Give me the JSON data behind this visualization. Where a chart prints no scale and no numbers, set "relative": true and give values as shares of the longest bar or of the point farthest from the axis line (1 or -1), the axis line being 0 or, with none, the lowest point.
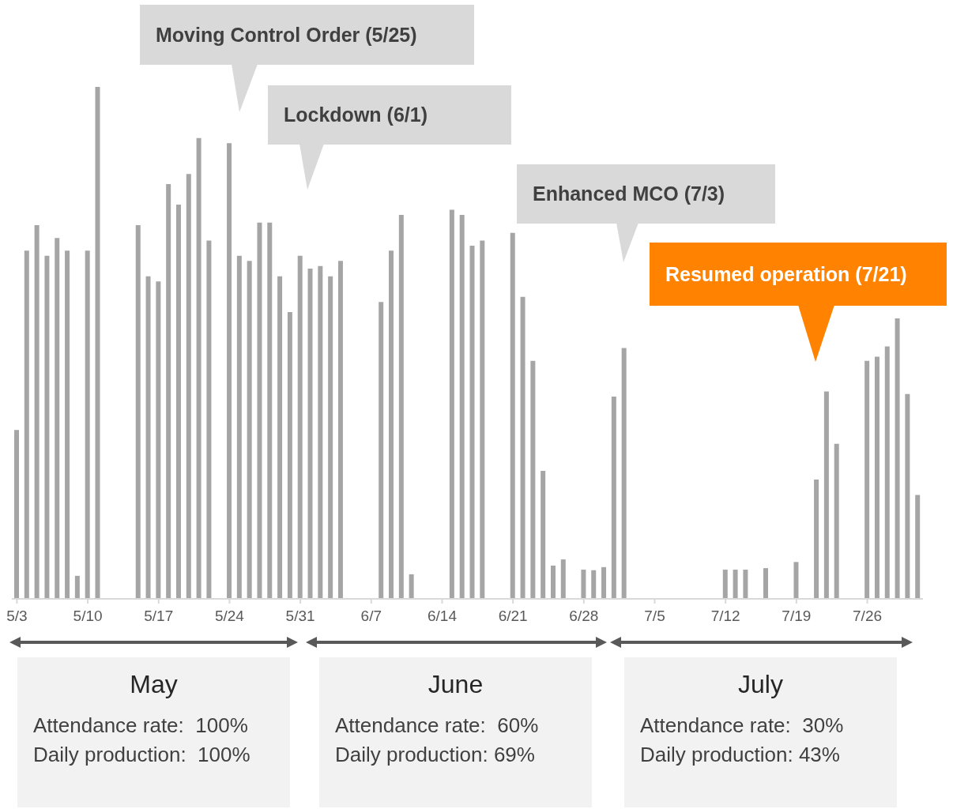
{
  "chart_data": {
    "type": "bar",
    "relative": true,
    "color": "#a5a5a5",
    "categories": [
      "5/3",
      null,
      null,
      null,
      null,
      null,
      null,
      "5/10",
      null,
      null,
      null,
      null,
      null,
      null,
      "5/17",
      null,
      null,
      null,
      null,
      null,
      null,
      "5/24",
      null,
      null,
      null,
      null,
      null,
      null,
      "5/31",
      null,
      null,
      null,
      null,
      null,
      null,
      "6/7",
      null,
      null,
      null,
      null,
      null,
      null,
      "6/14",
      null,
      null,
      null,
      null,
      null,
      null,
      "6/21",
      null,
      null,
      null,
      null,
      null,
      null,
      "6/28",
      null,
      null,
      null,
      null,
      null,
      null,
      "7/5",
      null,
      null,
      null,
      null,
      null,
      null,
      "7/12",
      null,
      null,
      null,
      null,
      null,
      null,
      "7/19",
      null,
      null,
      null,
      null,
      null,
      null,
      "7/26",
      null,
      null,
      null,
      null,
      null
    ],
    "values": [
      0.33,
      0.68,
      0.73,
      0.67,
      0.705,
      0.68,
      0.045,
      0.68,
      1.0,
      null,
      null,
      null,
      0.73,
      0.63,
      0.62,
      0.81,
      0.77,
      0.83,
      0.9,
      0.7,
      null,
      0.89,
      0.67,
      0.66,
      0.735,
      0.735,
      0.63,
      0.56,
      0.67,
      0.645,
      0.65,
      0.63,
      0.66,
      null,
      null,
      null,
      0.58,
      0.68,
      0.75,
      0.048,
      null,
      null,
      null,
      0.76,
      0.75,
      0.69,
      0.7,
      null,
      null,
      0.715,
      0.59,
      0.465,
      0.25,
      0.065,
      0.077,
      null,
      0.057,
      0.056,
      0.062,
      0.395,
      0.49,
      null,
      null,
      null,
      null,
      null,
      null,
      null,
      null,
      null,
      0.057,
      0.057,
      0.057,
      null,
      0.06,
      null,
      null,
      0.072,
      null,
      0.233,
      0.405,
      0.303,
      null,
      null,
      0.465,
      0.473,
      0.493,
      0.548,
      0.4,
      0.203
    ],
    "annotations": [
      "Moving Control Order (5/25)",
      "Lockdown (6/1)",
      "Enhanced MCO (7/3)",
      "Resumed operation (7/21)",
      "May",
      "Attendance rate:  100%",
      "Daily production:  100%",
      "June",
      "Attendance rate:  60%",
      "Daily production: 69%",
      "July",
      "Attendance rate:  30%",
      "Daily production: 43%"
    ]
  }
}
